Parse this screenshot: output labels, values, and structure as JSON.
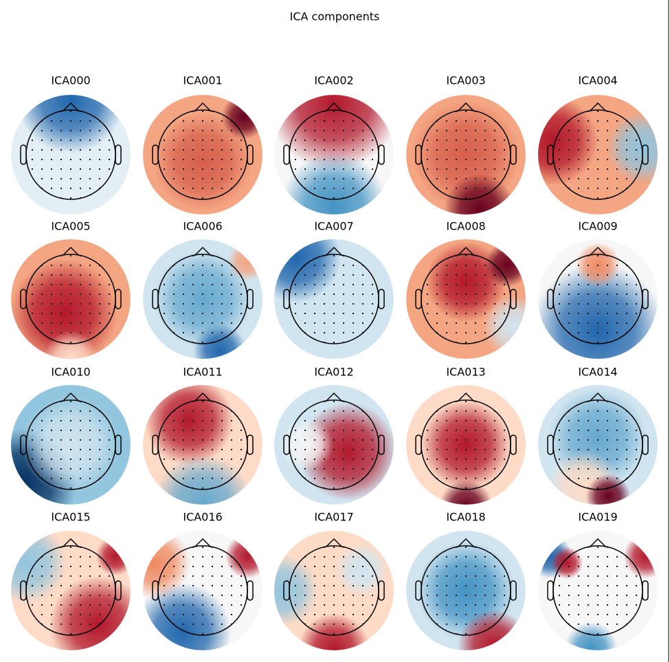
{
  "chart_data": {
    "type": "topomap",
    "title": "ICA components",
    "panels": [
      "ICA000",
      "ICA001",
      "ICA002",
      "ICA003",
      "ICA004",
      "ICA005",
      "ICA006",
      "ICA007",
      "ICA008",
      "ICA009",
      "ICA010",
      "ICA011",
      "ICA012",
      "ICA013",
      "ICA014",
      "ICA015",
      "ICA016",
      "ICA017",
      "ICA018",
      "ICA019"
    ]
  }
}
